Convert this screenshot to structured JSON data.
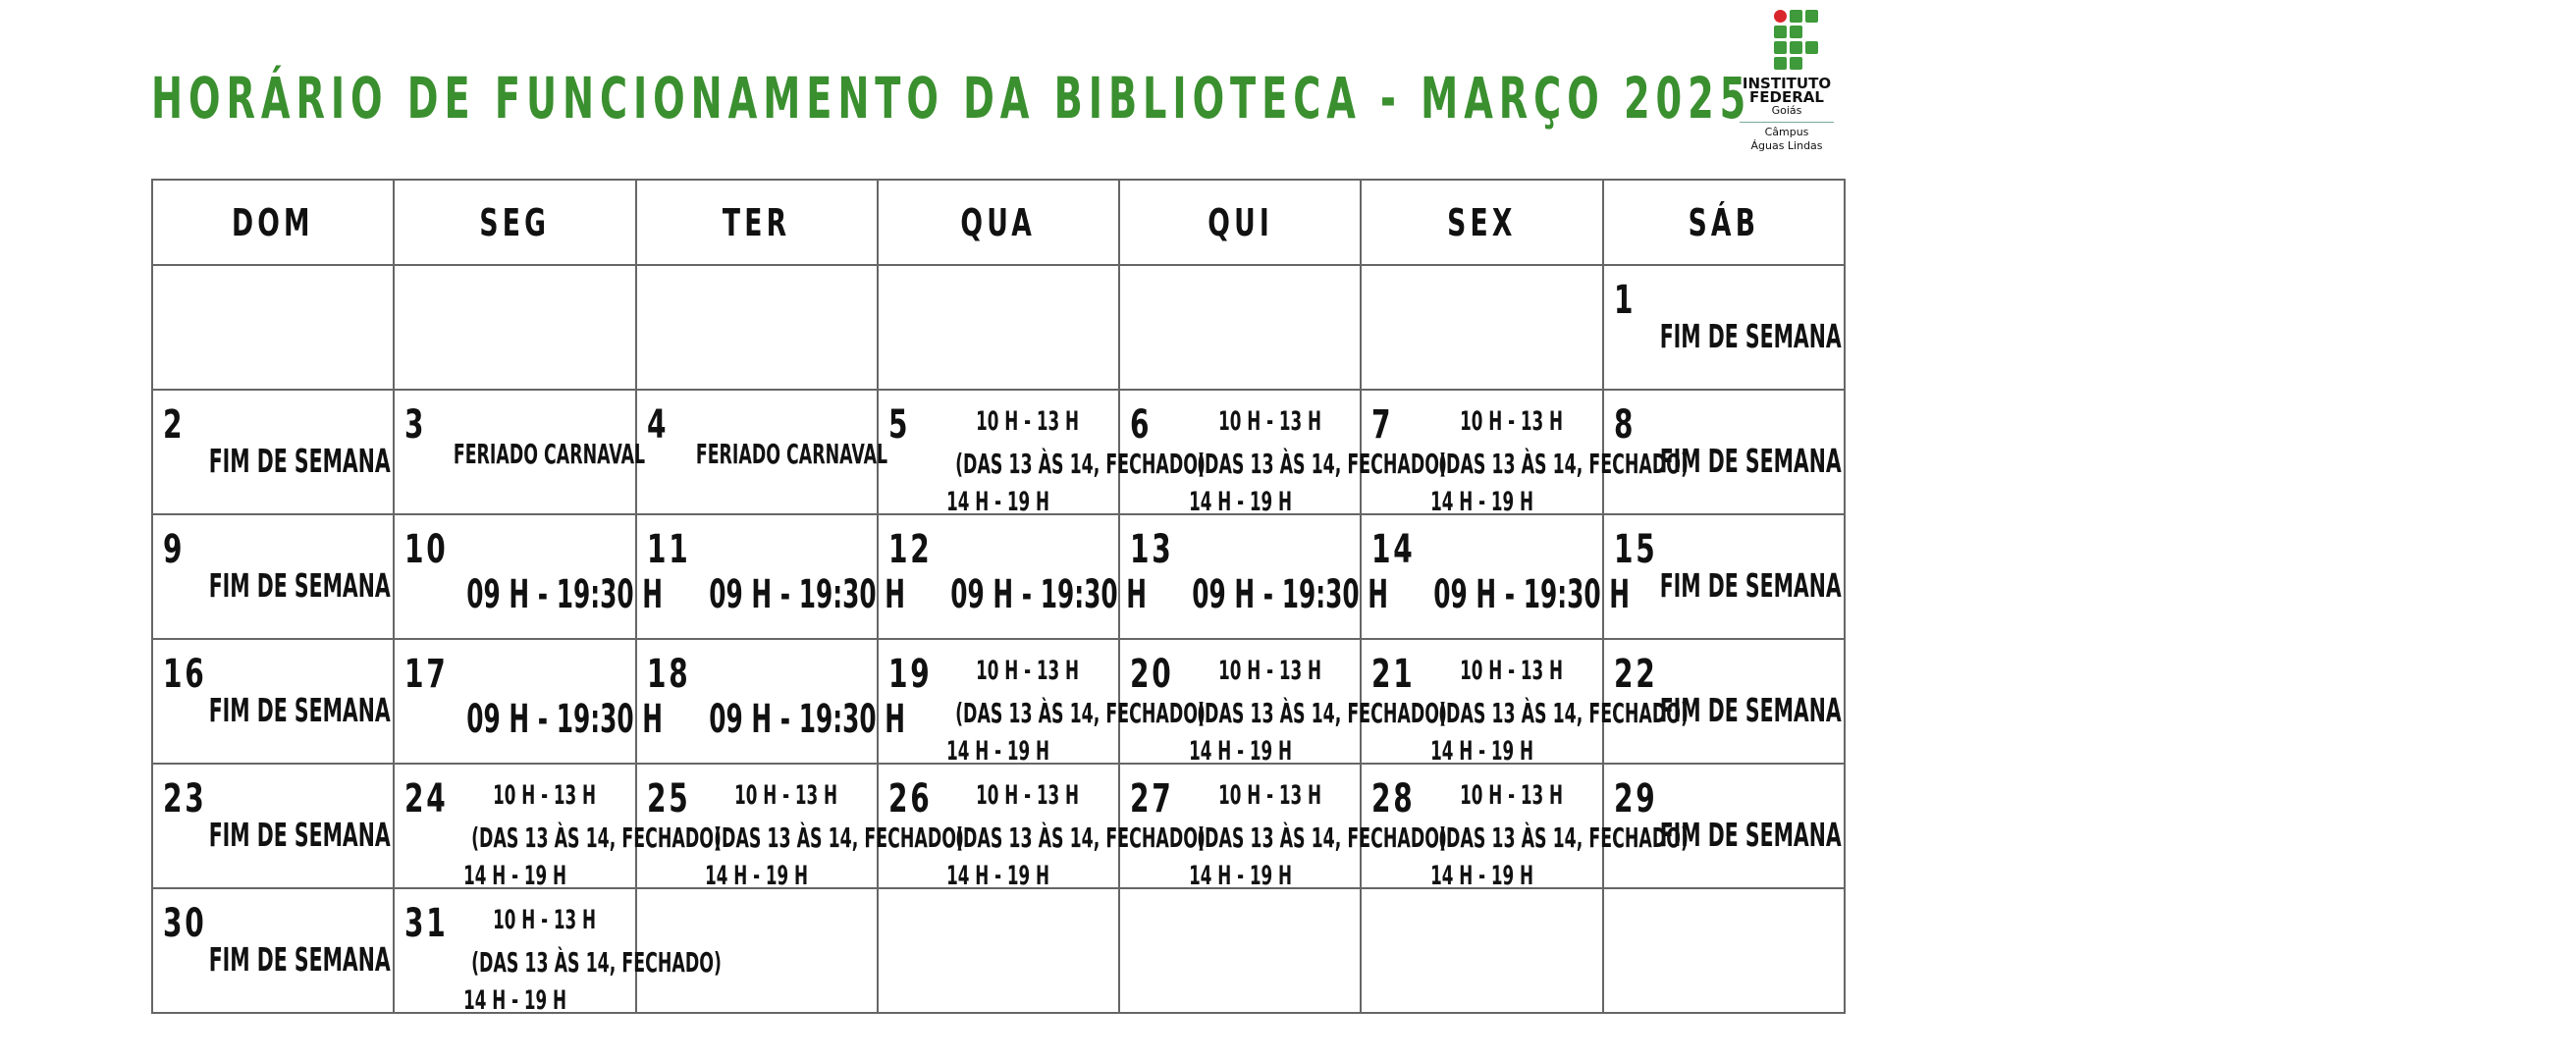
{
  "title": "HORÁRIO DE FUNCIONAMENTO DA BIBLIOTECA - MARÇO 2025",
  "logo": {
    "line1": "INSTITUTO",
    "line2": "FEDERAL",
    "line3": "Goiás",
    "line4": "Câmpus",
    "line5": "Águas Lindas",
    "green": "#3e9a3a",
    "red": "#d9262c"
  },
  "colors": {
    "title": "#3a8f2f"
  },
  "weekdays": [
    "DOM",
    "SEG",
    "TER",
    "QUA",
    "QUI",
    "SEX",
    "SÁB"
  ],
  "labels": {
    "weekend": "FIM DE SEMANA",
    "holiday": "FERIADO CARNAVAL",
    "full": "09 H - 19:30 H",
    "split": [
      "10 H - 13 H",
      "(DAS 13 ÀS 14, FECHADO)",
      "14 H - 19 H"
    ]
  },
  "days": [
    null,
    null,
    null,
    null,
    null,
    null,
    {
      "day": "1",
      "type": "weekend"
    },
    {
      "day": "2",
      "type": "weekend"
    },
    {
      "day": "3",
      "type": "holiday"
    },
    {
      "day": "4",
      "type": "holiday"
    },
    {
      "day": "5",
      "type": "split"
    },
    {
      "day": "6",
      "type": "split"
    },
    {
      "day": "7",
      "type": "split"
    },
    {
      "day": "8",
      "type": "weekend"
    },
    {
      "day": "9",
      "type": "weekend"
    },
    {
      "day": "10",
      "type": "full"
    },
    {
      "day": "11",
      "type": "full"
    },
    {
      "day": "12",
      "type": "full"
    },
    {
      "day": "13",
      "type": "full"
    },
    {
      "day": "14",
      "type": "full"
    },
    {
      "day": "15",
      "type": "weekend"
    },
    {
      "day": "16",
      "type": "weekend"
    },
    {
      "day": "17",
      "type": "full"
    },
    {
      "day": "18",
      "type": "full"
    },
    {
      "day": "19",
      "type": "split"
    },
    {
      "day": "20",
      "type": "split"
    },
    {
      "day": "21",
      "type": "split"
    },
    {
      "day": "22",
      "type": "weekend"
    },
    {
      "day": "23",
      "type": "weekend"
    },
    {
      "day": "24",
      "type": "split"
    },
    {
      "day": "25",
      "type": "split"
    },
    {
      "day": "26",
      "type": "split"
    },
    {
      "day": "27",
      "type": "split"
    },
    {
      "day": "28",
      "type": "split"
    },
    {
      "day": "29",
      "type": "weekend"
    },
    {
      "day": "30",
      "type": "weekend"
    },
    {
      "day": "31",
      "type": "split"
    },
    null,
    null,
    null,
    null,
    null
  ]
}
